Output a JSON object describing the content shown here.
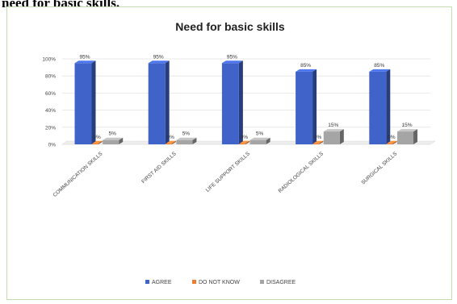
{
  "document": {
    "heading": "need for basic skills."
  },
  "chart_data": {
    "type": "bar",
    "title": "Need for basic skills",
    "xlabel": "",
    "ylabel": "",
    "ylim": [
      0,
      100
    ],
    "yticks": [
      "0%",
      "20%",
      "40%",
      "60%",
      "80%",
      "100%"
    ],
    "grid": true,
    "legend_position": "bottom",
    "categories": [
      "COMMUNICATION SKILLS",
      "FIRST AID SKILLS",
      "LIFE SUPPORT SKILLS",
      "RADIOLOGICAL SKILLS",
      "SURGICAL SKILLS"
    ],
    "series": [
      {
        "name": "AGREE",
        "color": "#3f63c8",
        "values": [
          95,
          95,
          95,
          85,
          85
        ],
        "labels": [
          "95%",
          "95%",
          "95%",
          "85%",
          "85%"
        ]
      },
      {
        "name": "DO NOT KNOW",
        "color": "#ee7d31",
        "values": [
          0,
          0,
          0,
          0,
          0
        ],
        "labels": [
          "0%",
          "0%",
          "0%",
          "0%",
          "0%"
        ]
      },
      {
        "name": "DISAGREE",
        "color": "#a5a5a5",
        "values": [
          5,
          5,
          5,
          15,
          15
        ],
        "labels": [
          "5%",
          "5%",
          "5%",
          "15%",
          "15%"
        ]
      }
    ]
  }
}
